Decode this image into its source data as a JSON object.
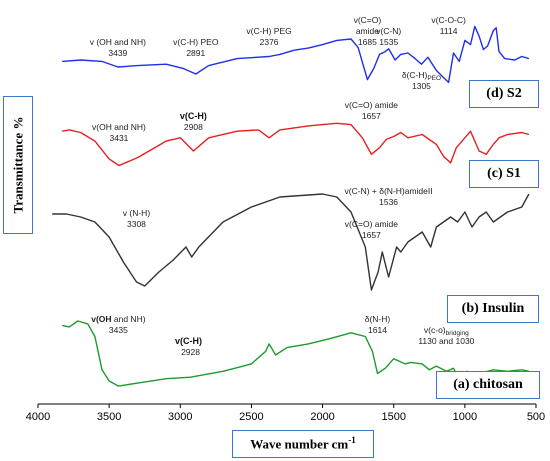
{
  "chart_data": {
    "type": "line",
    "title": "",
    "xlabel": "Wave number cm",
    "xlabel_sup": "-1",
    "ylabel": "Transmittance %",
    "xlim": [
      4000,
      500
    ],
    "x_ticks": [
      "4000",
      "3500",
      "3000",
      "2500",
      "2000",
      "1500",
      "1000",
      "500"
    ],
    "grid": false,
    "series": [
      {
        "name": "(d) S2",
        "color": "#1f2fe6",
        "points": [
          [
            3830,
            0.62
          ],
          [
            3700,
            0.6
          ],
          [
            3550,
            0.62
          ],
          [
            3439,
            0.7
          ],
          [
            3300,
            0.68
          ],
          [
            3100,
            0.66
          ],
          [
            2980,
            0.72
          ],
          [
            2891,
            0.8
          ],
          [
            2800,
            0.68
          ],
          [
            2600,
            0.58
          ],
          [
            2450,
            0.56
          ],
          [
            2376,
            0.55
          ],
          [
            2300,
            0.52
          ],
          [
            2200,
            0.46
          ],
          [
            2100,
            0.43
          ],
          [
            2000,
            0.38
          ],
          [
            1900,
            0.32
          ],
          [
            1800,
            0.3
          ],
          [
            1750,
            0.42
          ],
          [
            1685,
            0.88
          ],
          [
            1640,
            0.72
          ],
          [
            1600,
            0.52
          ],
          [
            1560,
            0.48
          ],
          [
            1535,
            0.44
          ],
          [
            1490,
            0.6
          ],
          [
            1450,
            0.52
          ],
          [
            1400,
            0.5
          ],
          [
            1350,
            0.58
          ],
          [
            1305,
            0.66
          ],
          [
            1260,
            0.56
          ],
          [
            1200,
            0.75
          ],
          [
            1150,
            0.85
          ],
          [
            1114,
            0.92
          ],
          [
            1080,
            0.5
          ],
          [
            1040,
            0.62
          ],
          [
            1000,
            0.32
          ],
          [
            960,
            0.38
          ],
          [
            930,
            0.12
          ],
          [
            900,
            0.26
          ],
          [
            870,
            0.45
          ],
          [
            840,
            0.4
          ],
          [
            800,
            0.18
          ],
          [
            780,
            0.14
          ],
          [
            760,
            0.48
          ],
          [
            720,
            0.58
          ],
          [
            650,
            0.6
          ],
          [
            600,
            0.55
          ],
          [
            550,
            0.58
          ]
        ]
      },
      {
        "name": "(c) S1",
        "color": "#e62020",
        "points": [
          [
            3830,
            0.2
          ],
          [
            3780,
            0.18
          ],
          [
            3700,
            0.22
          ],
          [
            3600,
            0.35
          ],
          [
            3500,
            0.62
          ],
          [
            3431,
            0.72
          ],
          [
            3300,
            0.6
          ],
          [
            3100,
            0.35
          ],
          [
            3000,
            0.3
          ],
          [
            2908,
            0.5
          ],
          [
            2800,
            0.3
          ],
          [
            2600,
            0.2
          ],
          [
            2450,
            0.18
          ],
          [
            2376,
            0.3
          ],
          [
            2300,
            0.18
          ],
          [
            2200,
            0.15
          ],
          [
            2100,
            0.12
          ],
          [
            2000,
            0.1
          ],
          [
            1900,
            0.08
          ],
          [
            1800,
            0.1
          ],
          [
            1720,
            0.3
          ],
          [
            1657,
            0.55
          ],
          [
            1600,
            0.45
          ],
          [
            1550,
            0.32
          ],
          [
            1500,
            0.28
          ],
          [
            1450,
            0.22
          ],
          [
            1400,
            0.3
          ],
          [
            1300,
            0.25
          ],
          [
            1200,
            0.4
          ],
          [
            1150,
            0.58
          ],
          [
            1100,
            0.68
          ],
          [
            1060,
            0.45
          ],
          [
            1000,
            0.3
          ],
          [
            960,
            0.2
          ],
          [
            900,
            0.5
          ],
          [
            850,
            0.55
          ],
          [
            800,
            0.4
          ],
          [
            760,
            0.3
          ],
          [
            700,
            0.25
          ],
          [
            600,
            0.22
          ],
          [
            550,
            0.25
          ]
        ]
      },
      {
        "name": "(b) Insulin",
        "color": "#333333",
        "points": [
          [
            3900,
            0.22
          ],
          [
            3800,
            0.22
          ],
          [
            3700,
            0.25
          ],
          [
            3600,
            0.3
          ],
          [
            3500,
            0.45
          ],
          [
            3400,
            0.7
          ],
          [
            3308,
            0.9
          ],
          [
            3250,
            0.94
          ],
          [
            3150,
            0.8
          ],
          [
            3050,
            0.68
          ],
          [
            2960,
            0.55
          ],
          [
            2920,
            0.65
          ],
          [
            2870,
            0.55
          ],
          [
            2700,
            0.3
          ],
          [
            2500,
            0.15
          ],
          [
            2300,
            0.05
          ],
          [
            2100,
            0.03
          ],
          [
            2000,
            0.02
          ],
          [
            1900,
            0.05
          ],
          [
            1800,
            0.2
          ],
          [
            1700,
            0.55
          ],
          [
            1657,
            0.98
          ],
          [
            1610,
            0.8
          ],
          [
            1580,
            0.6
          ],
          [
            1536,
            0.85
          ],
          [
            1480,
            0.55
          ],
          [
            1450,
            0.6
          ],
          [
            1400,
            0.5
          ],
          [
            1300,
            0.4
          ],
          [
            1240,
            0.55
          ],
          [
            1200,
            0.35
          ],
          [
            1100,
            0.25
          ],
          [
            1050,
            0.3
          ],
          [
            1000,
            0.2
          ],
          [
            950,
            0.35
          ],
          [
            900,
            0.25
          ],
          [
            850,
            0.2
          ],
          [
            800,
            0.3
          ],
          [
            700,
            0.2
          ],
          [
            600,
            0.15
          ],
          [
            550,
            0.02
          ]
        ]
      },
      {
        "name": "(a) chitosan",
        "color": "#1f9a2e",
        "points": [
          [
            3830,
            0.1
          ],
          [
            3780,
            0.12
          ],
          [
            3720,
            0.04
          ],
          [
            3650,
            0.08
          ],
          [
            3600,
            0.25
          ],
          [
            3550,
            0.7
          ],
          [
            3500,
            0.85
          ],
          [
            3435,
            0.92
          ],
          [
            3300,
            0.88
          ],
          [
            3100,
            0.82
          ],
          [
            2928,
            0.8
          ],
          [
            2700,
            0.72
          ],
          [
            2500,
            0.62
          ],
          [
            2400,
            0.45
          ],
          [
            2376,
            0.35
          ],
          [
            2330,
            0.5
          ],
          [
            2250,
            0.4
          ],
          [
            2100,
            0.35
          ],
          [
            1950,
            0.28
          ],
          [
            1800,
            0.2
          ],
          [
            1700,
            0.25
          ],
          [
            1650,
            0.45
          ],
          [
            1614,
            0.75
          ],
          [
            1560,
            0.68
          ],
          [
            1500,
            0.55
          ],
          [
            1420,
            0.62
          ],
          [
            1380,
            0.6
          ],
          [
            1300,
            0.62
          ],
          [
            1250,
            0.7
          ],
          [
            1200,
            0.65
          ],
          [
            1130,
            0.72
          ],
          [
            1080,
            0.68
          ],
          [
            1030,
            0.85
          ],
          [
            990,
            0.72
          ],
          [
            900,
            0.75
          ],
          [
            800,
            0.7
          ],
          [
            700,
            0.72
          ],
          [
            600,
            0.7
          ],
          [
            550,
            0.72
          ]
        ]
      }
    ],
    "annotations": [
      {
        "series": 0,
        "text": "v (OH and NH)",
        "x": 3439,
        "row": 0,
        "bold": false
      },
      {
        "series": 0,
        "text": "3439",
        "x": 3439,
        "row": 1,
        "bold": false
      },
      {
        "series": 0,
        "text": "v(C-H) PEO",
        "x": 2891,
        "row": 0,
        "bold": false
      },
      {
        "series": 0,
        "text": "2891",
        "x": 2891,
        "row": 1,
        "bold": false
      },
      {
        "series": 0,
        "text": "v(C-H) PEG",
        "x": 2376,
        "row": -1,
        "bold": false
      },
      {
        "series": 0,
        "text": "2376",
        "x": 2376,
        "row": 0,
        "bold": false
      },
      {
        "series": 0,
        "text": "v(C=O)",
        "x": 1685,
        "row": -2,
        "bold": false
      },
      {
        "series": 0,
        "text": "amide",
        "x": 1685,
        "row": -1,
        "bold": false
      },
      {
        "series": 0,
        "text": "1685",
        "x": 1685,
        "row": 0,
        "bold": false
      },
      {
        "series": 0,
        "text": "v(C-N)",
        "x": 1535,
        "row": -1,
        "bold": false
      },
      {
        "series": 0,
        "text": "1535",
        "x": 1535,
        "row": 0,
        "bold": false
      },
      {
        "series": 0,
        "text": "v(C-O-C)",
        "x": 1114,
        "row": -2,
        "bold": false
      },
      {
        "series": 0,
        "text": "1114",
        "x": 1114,
        "row": -1,
        "bold": false
      },
      {
        "series": 0,
        "text": "δ(C-H)",
        "x": 1305,
        "row": 3,
        "bold": false,
        "sub": "PEO"
      },
      {
        "series": 0,
        "text": "1305",
        "x": 1305,
        "row": 4,
        "bold": false
      },
      {
        "series": 1,
        "text": "v(OH and NH)",
        "x": 3431,
        "row": 0,
        "bold": false
      },
      {
        "series": 1,
        "text": "3431",
        "x": 3431,
        "row": 1,
        "bold": false
      },
      {
        "series": 1,
        "text": "v(C-H)",
        "x": 2908,
        "row": -1,
        "bold": true
      },
      {
        "series": 1,
        "text": "2908",
        "x": 2908,
        "row": 0,
        "bold": false
      },
      {
        "series": 1,
        "text": "v(C=O) amide",
        "x": 1657,
        "row": -2,
        "bold": false
      },
      {
        "series": 1,
        "text": "1657",
        "x": 1657,
        "row": -1,
        "bold": false
      },
      {
        "series": 2,
        "text": "v (N-H)",
        "x": 3308,
        "row": 0,
        "bold": false
      },
      {
        "series": 2,
        "text": "3308",
        "x": 3308,
        "row": 1,
        "bold": false
      },
      {
        "series": 2,
        "text": "v(C-N) + δ(N-H)amideII",
        "x": 1536,
        "row": -2,
        "bold": false
      },
      {
        "series": 2,
        "text": "1536",
        "x": 1536,
        "row": -1,
        "bold": false
      },
      {
        "series": 2,
        "text": "v(C=O) amide",
        "x": 1657,
        "row": 1,
        "bold": false
      },
      {
        "series": 2,
        "text": "1657",
        "x": 1657,
        "row": 2,
        "bold": false
      },
      {
        "series": 3,
        "text": "v(OH and NH)",
        "x": 3435,
        "row": 0,
        "bold": false,
        "partbold": "v(OH"
      },
      {
        "series": 3,
        "text": "3435",
        "x": 3435,
        "row": 1,
        "bold": false
      },
      {
        "series": 3,
        "text": "v(C-H)",
        "x": 2928,
        "row": 2,
        "bold": true
      },
      {
        "series": 3,
        "text": "2928",
        "x": 2928,
        "row": 3,
        "bold": false
      },
      {
        "series": 3,
        "text": "δ(N-H)",
        "x": 1614,
        "row": 0,
        "bold": false
      },
      {
        "series": 3,
        "text": "1614",
        "x": 1614,
        "row": 1,
        "bold": false
      },
      {
        "series": 3,
        "text": "v(c-o)",
        "x": 1130,
        "row": 1,
        "bold": false,
        "sub": "bridging"
      },
      {
        "series": 3,
        "text": "1130 and 1030",
        "x": 1130,
        "row": 2,
        "bold": false
      }
    ]
  }
}
